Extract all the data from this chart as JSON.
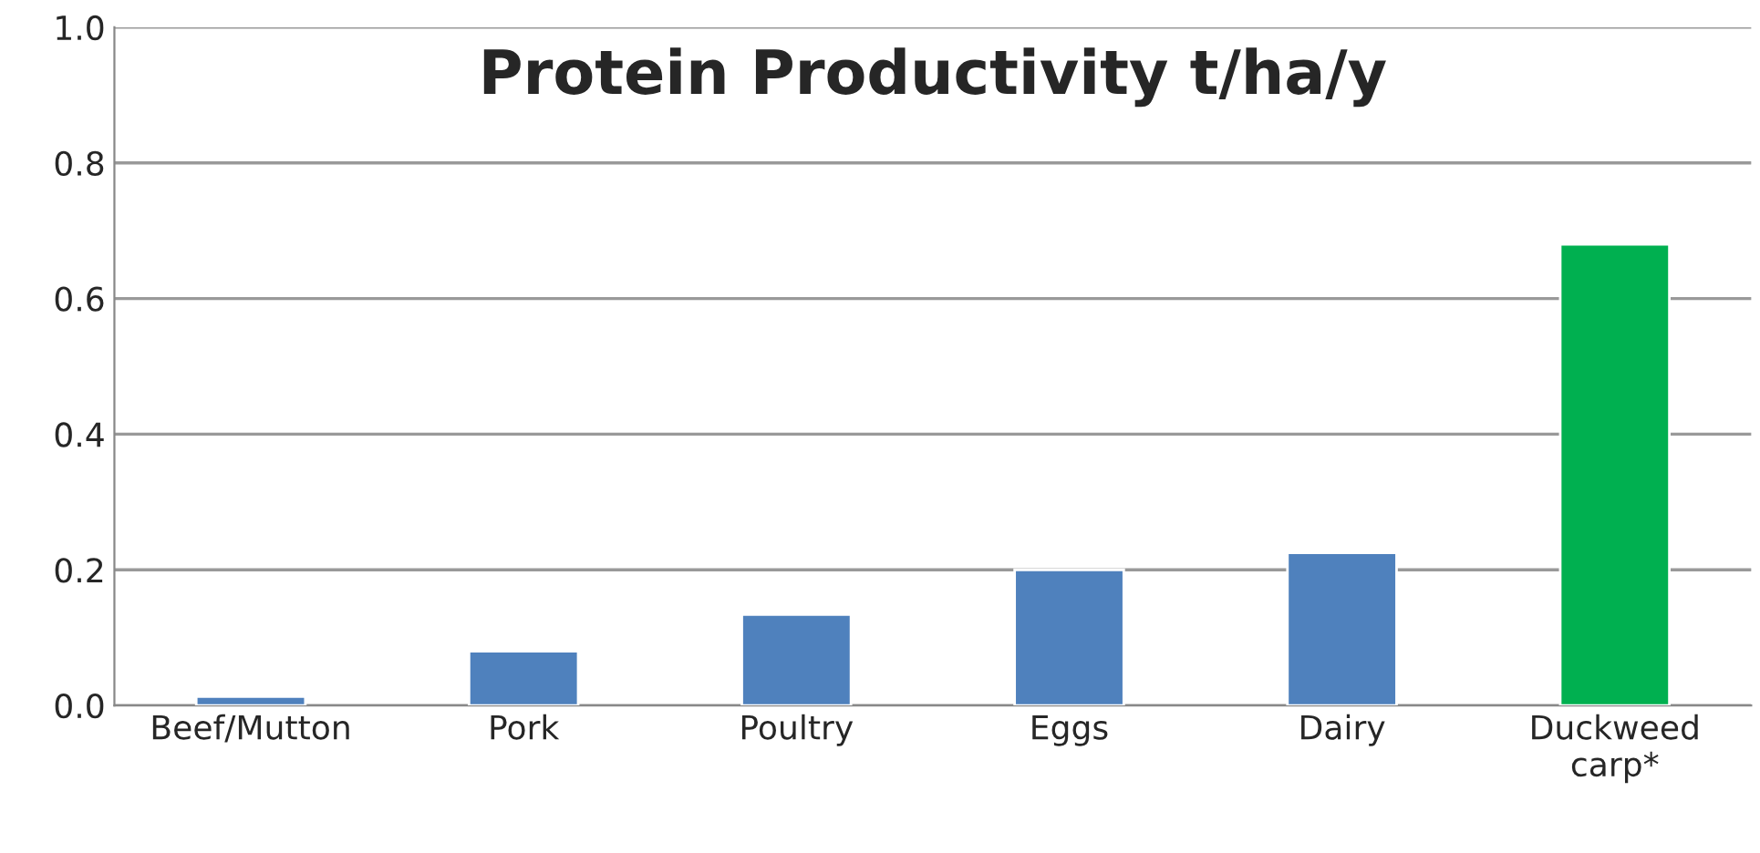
{
  "chart_data": {
    "type": "bar",
    "title": "Protein Productivity t/ha/y",
    "categories": [
      "Beef/Mutton",
      "Pork",
      "Poultry",
      "Eggs",
      "Dairy",
      "Duckweed\ncarp*"
    ],
    "values": [
      0.013,
      0.08,
      0.134,
      0.2,
      0.225,
      0.68
    ],
    "colors": [
      "#4f81bd",
      "#4f81bd",
      "#4f81bd",
      "#4f81bd",
      "#4f81bd",
      "#00b050"
    ],
    "ylim": [
      0,
      1
    ],
    "yticks": [
      {
        "value": 0,
        "label": "0.0"
      },
      {
        "value": 0.2,
        "label": "0.2"
      },
      {
        "value": 0.4,
        "label": "0.4"
      },
      {
        "value": 0.6,
        "label": "0.6"
      },
      {
        "value": 0.8,
        "label": "0.8"
      },
      {
        "value": 1,
        "label": "1.0"
      }
    ],
    "grid": "y",
    "legend": false
  }
}
